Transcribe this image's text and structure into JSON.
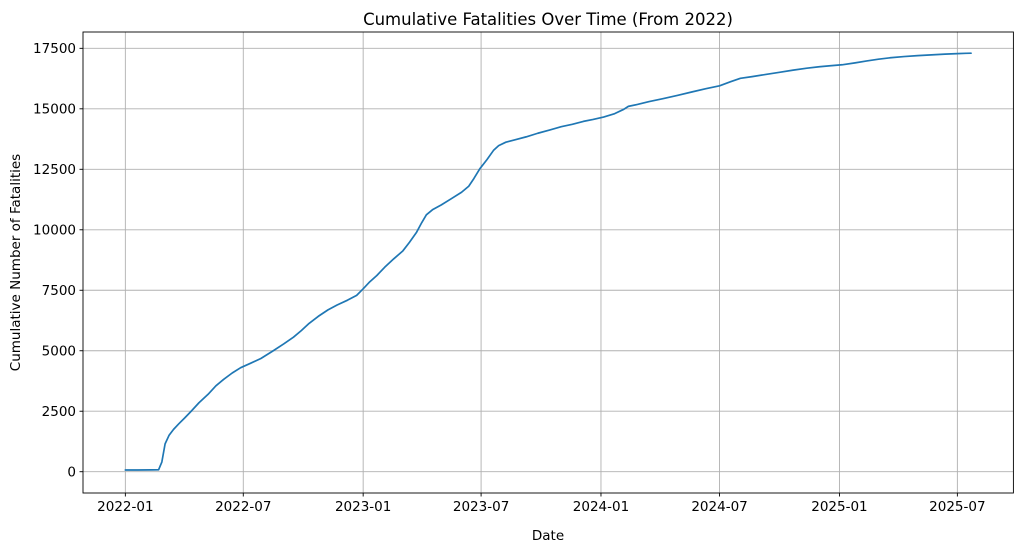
{
  "chart_data": {
    "type": "line",
    "title": "Cumulative Fatalities Over Time (From 2022)",
    "xlabel": "Date",
    "ylabel": "Cumulative Number of Fatalities",
    "grid": true,
    "legend_position": "none",
    "colors": {
      "line": "#1f77b4",
      "grid": "#b0b0b0",
      "spine": "#000000",
      "background": "#ffffff"
    },
    "x_axis": {
      "min_date": "2021-10-28",
      "max_date": "2025-09-25",
      "ticks": [
        {
          "label": "2022-01",
          "date": "2022-01-01"
        },
        {
          "label": "2022-07",
          "date": "2022-07-01"
        },
        {
          "label": "2023-01",
          "date": "2023-01-01"
        },
        {
          "label": "2023-07",
          "date": "2023-07-01"
        },
        {
          "label": "2024-01",
          "date": "2024-01-01"
        },
        {
          "label": "2024-07",
          "date": "2024-07-01"
        },
        {
          "label": "2025-01",
          "date": "2025-01-01"
        },
        {
          "label": "2025-07",
          "date": "2025-07-01"
        }
      ]
    },
    "y_axis": {
      "min": -880,
      "max": 18175,
      "ticks": [
        0,
        2500,
        5000,
        7500,
        10000,
        12500,
        15000,
        17500
      ]
    },
    "series": [
      {
        "name": "Cumulative Fatalities",
        "points": [
          [
            "2022-01-01",
            70
          ],
          [
            "2022-01-20",
            72
          ],
          [
            "2022-02-10",
            75
          ],
          [
            "2022-02-21",
            80
          ],
          [
            "2022-02-26",
            400
          ],
          [
            "2022-03-03",
            1150
          ],
          [
            "2022-03-09",
            1500
          ],
          [
            "2022-03-16",
            1750
          ],
          [
            "2022-03-24",
            1980
          ],
          [
            "2022-04-02",
            2220
          ],
          [
            "2022-04-12",
            2500
          ],
          [
            "2022-04-24",
            2850
          ],
          [
            "2022-05-08",
            3200
          ],
          [
            "2022-05-20",
            3550
          ],
          [
            "2022-06-01",
            3820
          ],
          [
            "2022-06-14",
            4080
          ],
          [
            "2022-06-27",
            4300
          ],
          [
            "2022-07-12",
            4480
          ],
          [
            "2022-07-28",
            4680
          ],
          [
            "2022-08-16",
            5000
          ],
          [
            "2022-09-01",
            5280
          ],
          [
            "2022-09-16",
            5560
          ],
          [
            "2022-09-28",
            5830
          ],
          [
            "2022-10-10",
            6130
          ],
          [
            "2022-10-24",
            6420
          ],
          [
            "2022-11-08",
            6690
          ],
          [
            "2022-11-22",
            6890
          ],
          [
            "2022-12-08",
            7090
          ],
          [
            "2022-12-22",
            7290
          ],
          [
            "2023-01-01",
            7560
          ],
          [
            "2023-01-10",
            7820
          ],
          [
            "2023-01-22",
            8110
          ],
          [
            "2023-02-03",
            8450
          ],
          [
            "2023-02-17",
            8800
          ],
          [
            "2023-03-03",
            9130
          ],
          [
            "2023-03-13",
            9480
          ],
          [
            "2023-03-24",
            9900
          ],
          [
            "2023-04-01",
            10300
          ],
          [
            "2023-04-08",
            10620
          ],
          [
            "2023-04-18",
            10840
          ],
          [
            "2023-05-01",
            11030
          ],
          [
            "2023-05-16",
            11280
          ],
          [
            "2023-06-01",
            11550
          ],
          [
            "2023-06-12",
            11800
          ],
          [
            "2023-06-20",
            12120
          ],
          [
            "2023-06-29",
            12520
          ],
          [
            "2023-07-10",
            12900
          ],
          [
            "2023-07-20",
            13280
          ],
          [
            "2023-07-28",
            13480
          ],
          [
            "2023-08-08",
            13620
          ],
          [
            "2023-08-22",
            13720
          ],
          [
            "2023-09-08",
            13840
          ],
          [
            "2023-09-26",
            13990
          ],
          [
            "2023-10-14",
            14120
          ],
          [
            "2023-11-01",
            14260
          ],
          [
            "2023-11-18",
            14360
          ],
          [
            "2023-12-05",
            14480
          ],
          [
            "2023-12-20",
            14560
          ],
          [
            "2024-01-05",
            14660
          ],
          [
            "2024-01-22",
            14800
          ],
          [
            "2024-02-05",
            14980
          ],
          [
            "2024-02-12",
            15100
          ],
          [
            "2024-02-26",
            15180
          ],
          [
            "2024-03-15",
            15300
          ],
          [
            "2024-04-05",
            15420
          ],
          [
            "2024-04-28",
            15560
          ],
          [
            "2024-05-20",
            15700
          ],
          [
            "2024-06-10",
            15830
          ],
          [
            "2024-07-01",
            15950
          ],
          [
            "2024-07-18",
            16120
          ],
          [
            "2024-08-02",
            16260
          ],
          [
            "2024-08-20",
            16330
          ],
          [
            "2024-09-10",
            16420
          ],
          [
            "2024-10-01",
            16510
          ],
          [
            "2024-10-22",
            16600
          ],
          [
            "2024-11-12",
            16680
          ],
          [
            "2024-12-01",
            16740
          ],
          [
            "2024-12-18",
            16780
          ],
          [
            "2025-01-05",
            16820
          ],
          [
            "2025-01-25",
            16900
          ],
          [
            "2025-02-12",
            16980
          ],
          [
            "2025-03-02",
            17050
          ],
          [
            "2025-03-20",
            17110
          ],
          [
            "2025-04-10",
            17160
          ],
          [
            "2025-05-01",
            17200
          ],
          [
            "2025-05-22",
            17230
          ],
          [
            "2025-06-12",
            17260
          ],
          [
            "2025-07-01",
            17280
          ],
          [
            "2025-07-14",
            17295
          ],
          [
            "2025-07-22",
            17300
          ]
        ]
      }
    ]
  }
}
